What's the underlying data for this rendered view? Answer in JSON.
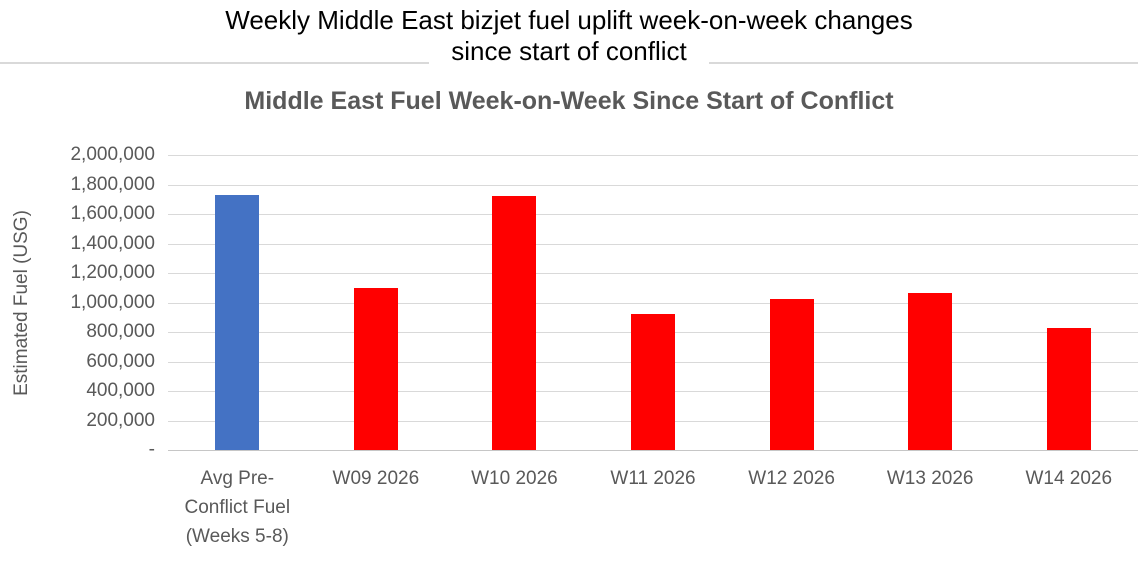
{
  "header": {
    "title_line1": "Weekly Middle East bizjet fuel uplift week-on-week changes",
    "title_line2": "since start of conflict"
  },
  "chart": {
    "title": "Middle East Fuel Week-on-Week Since Start of Conflict",
    "ylabel": "Estimated Fuel (USG)"
  },
  "chart_data": {
    "type": "bar",
    "title": "Middle East Fuel Week-on-Week Since Start of Conflict",
    "xlabel": "",
    "ylabel": "Estimated Fuel (USG)",
    "categories": [
      "Avg Pre-Conflict Fuel (Weeks 5-8)",
      "W09 2026",
      "W10 2026",
      "W11 2026",
      "W12 2026",
      "W13 2026",
      "W14 2026"
    ],
    "values": [
      1730000,
      1100000,
      1725000,
      920000,
      1025000,
      1065000,
      830000
    ],
    "bar_colors": [
      "#4472C4",
      "#FF0000",
      "#FF0000",
      "#FF0000",
      "#FF0000",
      "#FF0000",
      "#FF0000"
    ],
    "ylim": [
      0,
      2000000
    ],
    "y_tick_step": 200000,
    "y_tick_labels": [
      "2,000,000",
      "1,800,000",
      "1,600,000",
      "1,400,000",
      "1,200,000",
      "1,000,000",
      "800,000",
      "600,000",
      "400,000",
      "200,000",
      "-"
    ],
    "grid": true,
    "legend_position": "none"
  },
  "colors": {
    "gridline": "#D9D9D9",
    "baseline": "#C6C6C6",
    "axis_text": "#595959",
    "chart_title_text": "#595959",
    "main_title_text": "#000000",
    "header_rule": "#D9D9D9",
    "highlight_bar": "#4472C4",
    "default_bar": "#FF0000"
  }
}
